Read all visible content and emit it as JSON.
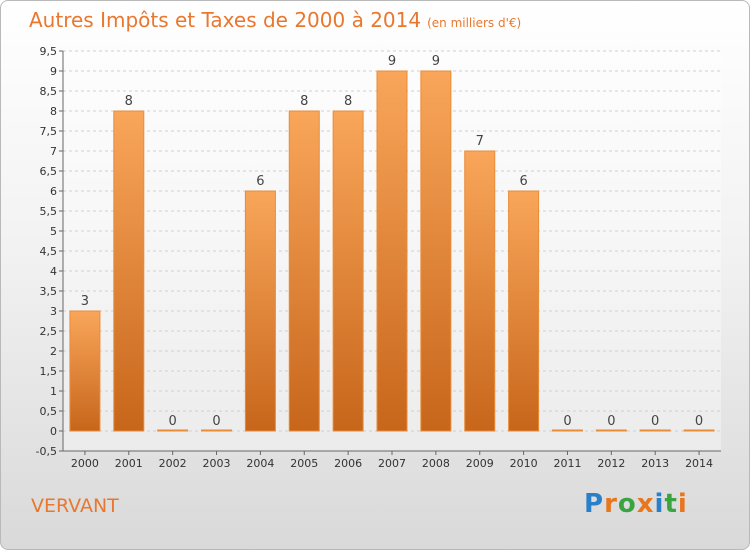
{
  "title": "Autres Impôts et Taxes de 2000 à 2014",
  "unit": "(en milliers d'€)",
  "place": "VERVANT",
  "logo": {
    "letters": [
      "P",
      "r",
      "o",
      "x",
      "i",
      "t",
      "i"
    ],
    "colors": [
      "#2a7fc9",
      "#e8761e",
      "#3aa540",
      "#e8761e",
      "#2a7fc9",
      "#3aa540",
      "#e8761e"
    ]
  },
  "colors": {
    "bar_top": "#f9a65a",
    "bar_bottom": "#c7661b",
    "accent": "#e9772e"
  },
  "chart_data": {
    "type": "bar",
    "categories": [
      "2000",
      "2001",
      "2002",
      "2003",
      "2004",
      "2005",
      "2006",
      "2007",
      "2008",
      "2009",
      "2010",
      "2011",
      "2012",
      "2013",
      "2014"
    ],
    "values": [
      3,
      8,
      0,
      0,
      6,
      8,
      8,
      9,
      9,
      7,
      6,
      0,
      0,
      0,
      0
    ],
    "ylim": [
      -0.5,
      9.5
    ],
    "yticks": [
      "-0,5",
      "0",
      "0,5",
      "1",
      "1,5",
      "2",
      "2,5",
      "3",
      "3,5",
      "4",
      "4,5",
      "5",
      "5,5",
      "6",
      "6,5",
      "7",
      "7,5",
      "8",
      "8,5",
      "9",
      "9,5"
    ],
    "grid": true,
    "xlabel": "",
    "ylabel": ""
  }
}
